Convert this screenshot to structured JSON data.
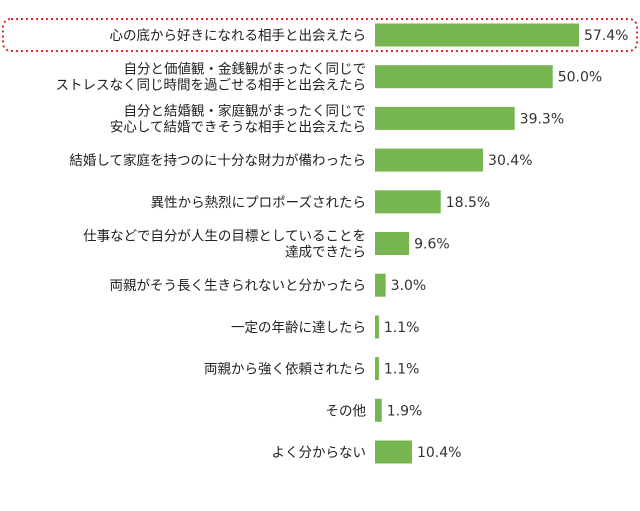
{
  "chart_data": {
    "type": "bar",
    "orientation": "horizontal",
    "categories": [
      [
        "心の底から好きになれる相手と出会えたら"
      ],
      [
        "自分と価値観・金銭観がまったく同じで",
        "ストレスなく同じ時間を過ごせる相手と出会えたら"
      ],
      [
        "自分と結婚観・家庭観がまったく同じで",
        "安心して結婚できそうな相手と出会えたら"
      ],
      [
        "結婚して家庭を持つのに十分な財力が備わったら"
      ],
      [
        "異性から熱烈にプロポーズされたら"
      ],
      [
        "仕事などで自分が人生の目標としていることを",
        "達成できたら"
      ],
      [
        "両親がそう長く生きられないと分かったら"
      ],
      [
        "一定の年齢に達したら"
      ],
      [
        "両親から強く依頼されたら"
      ],
      [
        "その他"
      ],
      [
        "よく分からない"
      ]
    ],
    "values": [
      57.4,
      50.0,
      39.3,
      30.4,
      18.5,
      9.6,
      3.0,
      1.1,
      1.1,
      1.9,
      10.4
    ],
    "value_labels": [
      "57.4%",
      "50.0%",
      "39.3%",
      "30.4%",
      "18.5%",
      "9.6%",
      "3.0%",
      "1.1%",
      "1.1%",
      "1.9%",
      "10.4%"
    ],
    "highlight_index": 0,
    "xlim": [
      0,
      57.4
    ]
  },
  "colors": {
    "bar": "#76b550",
    "highlight": "#e0262d",
    "text": "#222222"
  }
}
